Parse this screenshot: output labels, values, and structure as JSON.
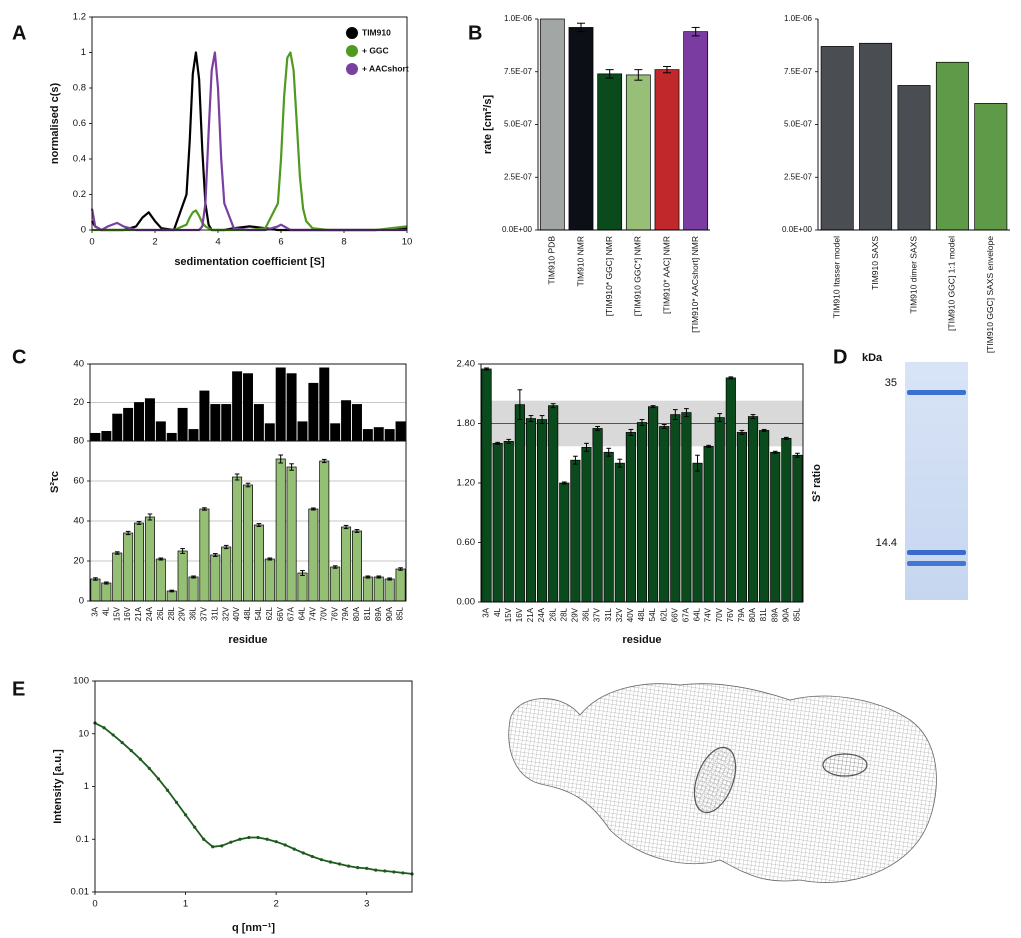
{
  "panel_labels": [
    "A",
    "B",
    "C",
    "D",
    "E"
  ],
  "gel": {
    "unit_label": "kDa",
    "markers": [
      35,
      14.4
    ]
  },
  "chart_data": [
    {
      "type": "line",
      "y_label": "normalised c(s)",
      "x_label": "sedimentation coefficient [S]",
      "x": [
        0,
        0.1,
        0.3,
        0.5,
        0.8,
        1.0,
        1.4,
        1.6,
        1.8,
        2.0,
        2.2,
        2.6,
        3.0,
        3.1,
        3.2,
        3.3,
        3.4,
        3.5,
        3.6,
        3.7,
        3.8,
        3.9,
        4.0,
        4.1,
        4.2,
        4.5,
        5.0,
        5.5,
        5.9,
        6.0,
        6.1,
        6.2,
        6.3,
        6.4,
        6.5,
        6.6,
        6.7,
        6.8,
        7.0,
        7.5,
        8.0,
        9.0,
        10.0
      ],
      "xlim": [
        0,
        10
      ],
      "xticks": [
        0,
        2,
        4,
        6,
        8,
        10
      ],
      "ylim": [
        0,
        1.2
      ],
      "yticks": [
        0,
        0.2,
        0.4,
        0.6,
        0.8,
        1,
        1.2
      ],
      "legend": "upper right",
      "frame": true,
      "series": [
        {
          "name": "TIM910",
          "color": "#000000",
          "values": [
            0.05,
            0.02,
            0,
            0,
            0,
            0,
            0.02,
            0.07,
            0.1,
            0.05,
            0.01,
            0,
            0.2,
            0.5,
            0.88,
            1.0,
            0.85,
            0.45,
            0.15,
            0.03,
            0,
            0,
            0,
            0,
            0,
            0.01,
            0.02,
            0.01,
            0,
            0,
            0,
            0,
            0,
            0,
            0,
            0,
            0,
            0,
            0,
            0,
            0,
            0,
            0.01
          ]
        },
        {
          "name": "+ GGC",
          "color": "#4f9a1f",
          "values": [
            0,
            0,
            0,
            0,
            0,
            0,
            0,
            0,
            0,
            0,
            0,
            0,
            0.03,
            0.07,
            0.1,
            0.11,
            0.08,
            0.04,
            0.02,
            0.01,
            0,
            0,
            0,
            0,
            0,
            0,
            0,
            0.01,
            0.15,
            0.4,
            0.75,
            0.97,
            1.0,
            0.9,
            0.6,
            0.3,
            0.12,
            0.05,
            0.01,
            0,
            0,
            0,
            0.02
          ]
        },
        {
          "name": "+ AACshort",
          "color": "#7b3fa0",
          "values": [
            0.12,
            0.02,
            0,
            0.02,
            0.04,
            0.02,
            0,
            0,
            0,
            0,
            0,
            0,
            0,
            0,
            0,
            0,
            0,
            0.02,
            0.15,
            0.55,
            0.9,
            1.0,
            0.8,
            0.4,
            0.15,
            0.01,
            0,
            0,
            0.02,
            0.03,
            0.02,
            0.01,
            0,
            0,
            0,
            0,
            0,
            0,
            0,
            0,
            0,
            0,
            0
          ]
        }
      ]
    },
    {
      "type": "bar",
      "y_label": "rate [cm²/s]",
      "categories": [
        "TIM910 PDB",
        "TIM910 NMR",
        "[TIM910* GGC] NMR",
        "[TIM910 GGC*] NMR",
        "[TIM910* AAC] NMR",
        "[TIM910* AACshort] NMR"
      ],
      "values": [
        1e-06,
        9.6e-07,
        7.4e-07,
        7.35e-07,
        7.6e-07,
        9.4e-07
      ],
      "errors": [
        null,
        2e-08,
        2e-08,
        2.5e-08,
        1.5e-08,
        2e-08
      ],
      "colors": [
        "#a2a6a5",
        "#0d0f17",
        "#0b4a1c",
        "#98bf78",
        "#c0282c",
        "#7a3ca0"
      ],
      "ylim": [
        0,
        1e-06
      ],
      "yticks": [
        {
          "value": 0,
          "label": "0.0E+00"
        },
        {
          "value": 2.5e-07,
          "label": "2.5E-07"
        },
        {
          "value": 5e-07,
          "label": "5.0E-07"
        },
        {
          "value": 7.5e-07,
          "label": "7.5E-07"
        },
        {
          "value": 1e-06,
          "label": "1.0E-06"
        }
      ]
    },
    {
      "type": "bar",
      "categories": [
        "TIM910 Itasser model",
        "TIM910 SAXS",
        "TIM910 dimer SAXS",
        "[TIM910 GGC] 1:1 model",
        "[TIM910 GGC] SAXS envelope"
      ],
      "values": [
        8.7e-07,
        8.85e-07,
        6.85e-07,
        7.95e-07,
        6e-07
      ],
      "colors": [
        "#4a4d52",
        "#4a4d52",
        "#4a4d52",
        "#5e9a48",
        "#5e9a48"
      ],
      "ylim": [
        0,
        1e-06
      ],
      "yticks": [
        {
          "value": 0,
          "label": "0.0E+00"
        },
        {
          "value": 2.5e-07,
          "label": "2.5E-07"
        },
        {
          "value": 5e-07,
          "label": "5.0E-07"
        },
        {
          "value": 7.5e-07,
          "label": "7.5E-07"
        },
        {
          "value": 1e-06,
          "label": "1.0E-06"
        }
      ]
    },
    {
      "type": "bar",
      "values": [
        4,
        5,
        14,
        17,
        20,
        22,
        10,
        4,
        17,
        6,
        26,
        19,
        19,
        36,
        35,
        19,
        9,
        38,
        35,
        10,
        30,
        38,
        9,
        21,
        19,
        6,
        7,
        6,
        10
      ],
      "color": "#000000",
      "ylim": [
        0,
        40
      ],
      "yticks": [
        20,
        40
      ],
      "grid": true,
      "frame": true
    },
    {
      "type": "bar",
      "y_label": "S²τc",
      "x_label": "residue",
      "categories": [
        "3A",
        "4L",
        "15V",
        "16V",
        "21A",
        "24A",
        "26L",
        "28L",
        "29V",
        "36L",
        "37V",
        "31L",
        "32V",
        "40V",
        "48L",
        "54L",
        "62L",
        "66V",
        "67A",
        "64L",
        "74V",
        "70V",
        "76V",
        "79A",
        "80A",
        "81L",
        "89A",
        "90A",
        "85L"
      ],
      "values": [
        11,
        9,
        24,
        34,
        39,
        42,
        21,
        5,
        25,
        12,
        46,
        23,
        27,
        62,
        58,
        38,
        21,
        71,
        67,
        14,
        46,
        70,
        17,
        37,
        35,
        12,
        12,
        11,
        16
      ],
      "errors": [
        0.6,
        0.5,
        0.6,
        0.8,
        0.7,
        1.5,
        0.5,
        0.4,
        1.2,
        0.5,
        0.6,
        0.7,
        0.8,
        1.5,
        0.9,
        0.7,
        0.5,
        2.0,
        1.6,
        1.2,
        0.5,
        0.8,
        0.6,
        0.8,
        0.7,
        0.5,
        0.5,
        0.5,
        0.6
      ],
      "color": "#95bf74",
      "ylim": [
        0,
        80
      ],
      "yticks": [
        0,
        20,
        40,
        60,
        80
      ],
      "grid": true,
      "frame": true
    },
    {
      "type": "bar",
      "y_label": "S² ratio",
      "x_label": "residue",
      "categories": [
        "3A",
        "4L",
        "15V",
        "16V",
        "21A",
        "24A",
        "26L",
        "28L",
        "29V",
        "36L",
        "37V",
        "31L",
        "32V",
        "40V",
        "48L",
        "54L",
        "62L",
        "66V",
        "67A",
        "64L",
        "74V",
        "70V",
        "76V",
        "79A",
        "80A",
        "81L",
        "89A",
        "90A",
        "85L"
      ],
      "values": [
        2.35,
        1.6,
        1.62,
        1.99,
        1.85,
        1.84,
        1.98,
        1.2,
        1.43,
        1.56,
        1.75,
        1.51,
        1.4,
        1.71,
        1.81,
        1.97,
        1.77,
        1.89,
        1.91,
        1.4,
        1.57,
        1.86,
        2.26,
        1.71,
        1.87,
        1.73,
        1.51,
        1.65,
        1.48
      ],
      "errors": [
        0.01,
        0.01,
        0.02,
        0.15,
        0.03,
        0.04,
        0.02,
        0.01,
        0.04,
        0.04,
        0.02,
        0.04,
        0.04,
        0.03,
        0.03,
        0.01,
        0.02,
        0.05,
        0.04,
        0.08,
        0.01,
        0.04,
        0.01,
        0.02,
        0.02,
        0.01,
        0.01,
        0.01,
        0.02
      ],
      "color": "#0b4a1c",
      "ylim": [
        0,
        2.4
      ],
      "yticks": [
        {
          "value": 0,
          "label": "0.00"
        },
        {
          "value": 0.6,
          "label": "0.60"
        },
        {
          "value": 1.2,
          "label": "1.20"
        },
        {
          "value": 1.8,
          "label": "1.80"
        },
        {
          "value": 2.4,
          "label": "2.40"
        }
      ],
      "band": [
        1.57,
        2.03
      ],
      "band_color": "#d9d9d9",
      "mean_line": 1.8,
      "frame": true
    },
    {
      "type": "scatter",
      "log_y": true,
      "y_label": "Intensity [a.u.]",
      "x_label": "q [nm⁻¹]",
      "x": [
        0,
        0.1,
        0.2,
        0.3,
        0.4,
        0.5,
        0.6,
        0.7,
        0.8,
        0.9,
        1.0,
        1.1,
        1.2,
        1.3,
        1.4,
        1.5,
        1.6,
        1.7,
        1.8,
        1.9,
        2.0,
        2.1,
        2.2,
        2.3,
        2.4,
        2.5,
        2.6,
        2.7,
        2.8,
        2.9,
        3.0,
        3.1,
        3.2,
        3.3,
        3.4,
        3.5
      ],
      "values": [
        16,
        13,
        9.5,
        6.8,
        4.8,
        3.3,
        2.2,
        1.4,
        0.85,
        0.5,
        0.29,
        0.17,
        0.1,
        0.072,
        0.075,
        0.088,
        0.1,
        0.108,
        0.108,
        0.1,
        0.09,
        0.078,
        0.065,
        0.055,
        0.047,
        0.041,
        0.037,
        0.034,
        0.031,
        0.029,
        0.028,
        0.026,
        0.025,
        0.024,
        0.023,
        0.022
      ],
      "color": "#1d5a1d",
      "xlim": [
        0,
        3.5
      ],
      "xticks": [
        0,
        1,
        2,
        3
      ],
      "ylim": [
        0.01,
        100
      ],
      "yticks": [
        0.01,
        0.1,
        1,
        10,
        100
      ],
      "frame": true
    }
  ]
}
